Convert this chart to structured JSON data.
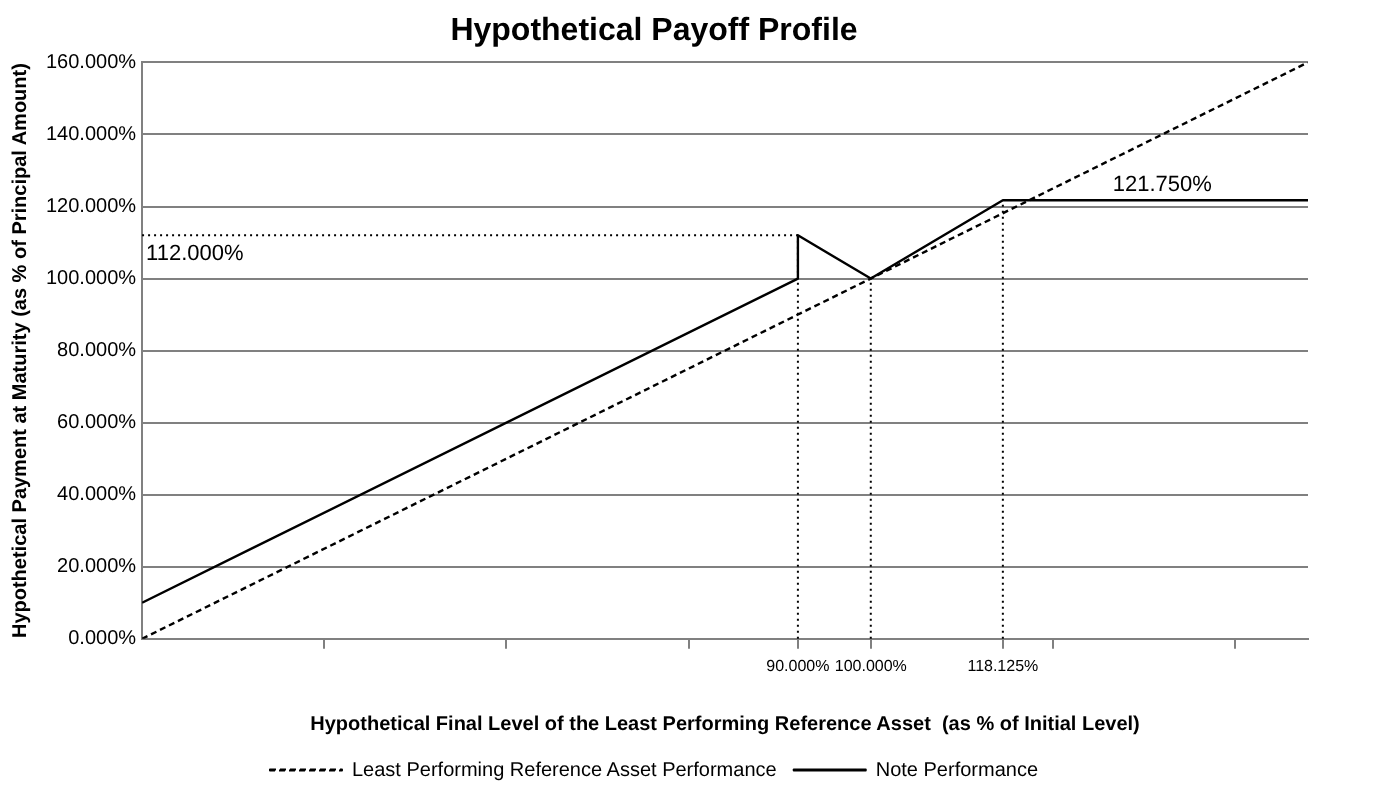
{
  "chart_data": {
    "type": "line",
    "title": "Hypothetical Payoff Profile",
    "xlabel": "Hypothetical Final Level of the Least Performing Reference Asset  (as % of Initial Level)",
    "ylabel": "Hypothetical Payment at Maturity (as % of Principal Amount)",
    "series": [
      {
        "name": "Least Performing Reference Asset Performance",
        "color": "#000000",
        "line_style": "dashed",
        "x": [
          0,
          160
        ],
        "values": [
          0,
          160
        ]
      },
      {
        "name": "Note Performance",
        "color": "#000000",
        "line_style": "solid",
        "x": [
          0,
          90,
          90,
          100,
          118.125,
          160
        ],
        "values": [
          10,
          100,
          112,
          100,
          121.75,
          121.75
        ]
      }
    ],
    "xlim": [
      0,
      160
    ],
    "xticks": [
      {
        "value": 25,
        "label": null
      },
      {
        "value": 50,
        "label": null
      },
      {
        "value": 75,
        "label": null
      },
      {
        "value": 90,
        "label": "90.000%"
      },
      {
        "value": 100,
        "label": "100.000%"
      },
      {
        "value": 118.125,
        "label": "118.125%"
      },
      {
        "value": 125,
        "label": null
      },
      {
        "value": 150,
        "label": null
      }
    ],
    "ylim": [
      0,
      160
    ],
    "yticks": [
      {
        "value": 0,
        "label": "0.000%"
      },
      {
        "value": 20,
        "label": "20.000%"
      },
      {
        "value": 40,
        "label": "40.000%"
      },
      {
        "value": 60,
        "label": "60.000%"
      },
      {
        "value": 80,
        "label": "80.000%"
      },
      {
        "value": 100,
        "label": "100.000%"
      },
      {
        "value": 120,
        "label": "120.000%"
      },
      {
        "value": 140,
        "label": "140.000%"
      },
      {
        "value": 160,
        "label": "160.000%"
      }
    ],
    "ref_lines": [
      {
        "axis": "x",
        "value": 90,
        "line_style": "dotted",
        "color": "#000000"
      },
      {
        "axis": "x",
        "value": 100,
        "line_style": "dotted",
        "color": "#000000"
      },
      {
        "axis": "x",
        "value": 118.125,
        "line_style": "dotted",
        "color": "#000000"
      },
      {
        "axis": "y",
        "value": 112,
        "line_style": "dotted",
        "color": "#000000"
      }
    ],
    "annotations": [
      {
        "text": "112.000%",
        "x": 0,
        "y": 112
      },
      {
        "text": "121.750%",
        "x": 140,
        "y": 121.75
      }
    ],
    "grid": "y",
    "legend": "bottom",
    "marker": "none"
  }
}
